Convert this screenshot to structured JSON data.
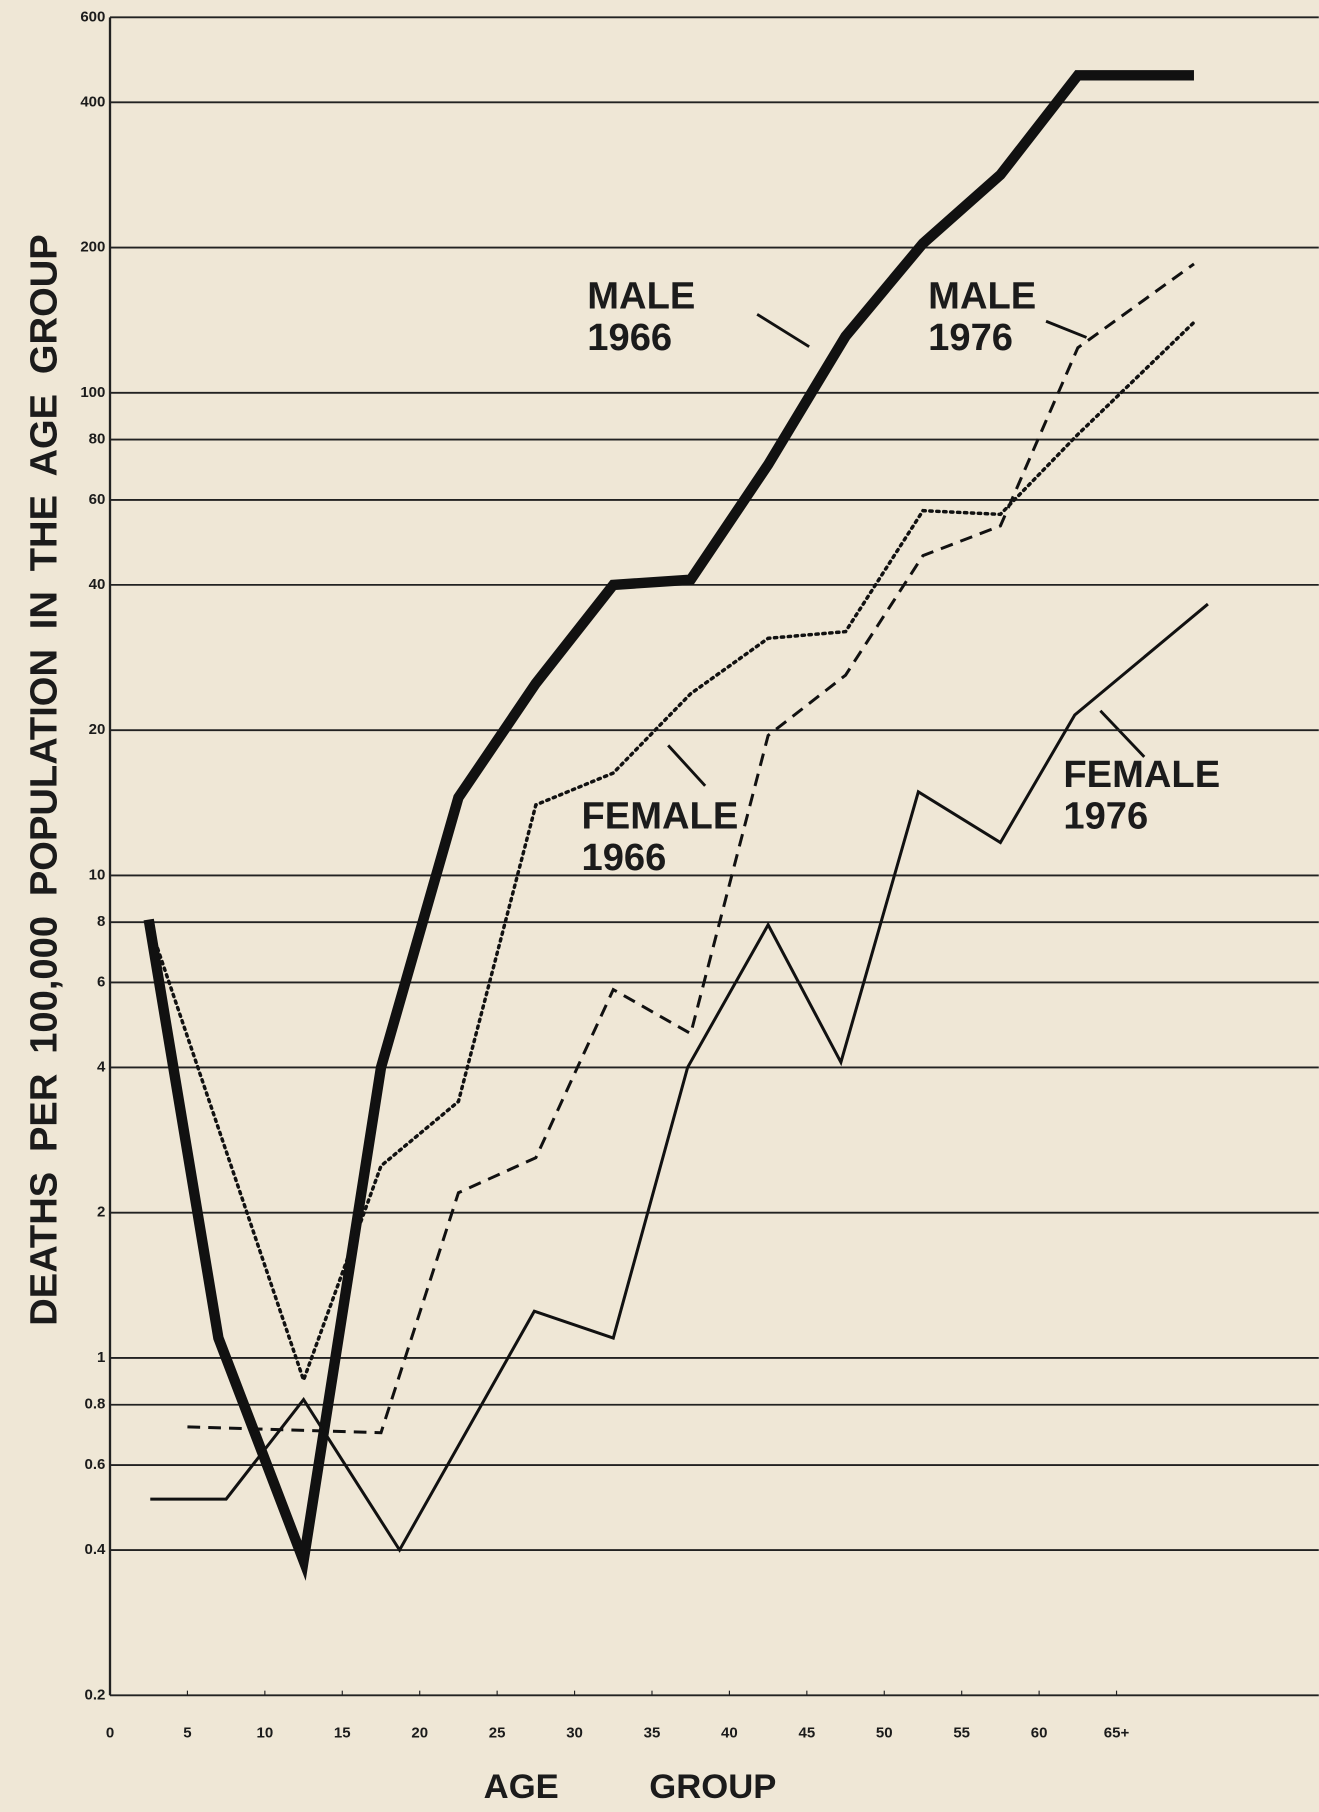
{
  "chart_data": {
    "type": "line",
    "ylabel": "DEATHS PER 100,000 POPULATION IN THE AGE GROUP",
    "xlabel": "AGE GROUP",
    "log_y": true,
    "grid": true,
    "ylim": [
      0.2,
      600
    ],
    "yticks": [
      0.2,
      0.4,
      0.6,
      0.8,
      1,
      2,
      4,
      6,
      8,
      10,
      20,
      40,
      60,
      80,
      100,
      200,
      400,
      600
    ],
    "xlim": [
      0,
      78
    ],
    "xticks": [
      0,
      5,
      10,
      15,
      20,
      25,
      30,
      35,
      40,
      45,
      50,
      55,
      60,
      {
        "value": 65,
        "label": "65+"
      }
    ],
    "series": [
      {
        "name": "MALE 1966",
        "color": "#111111",
        "style": "thick",
        "x": [
          2.5,
          7,
          12.5,
          17.5,
          22.5,
          27.5,
          32.5,
          37.5,
          42.5,
          47.5,
          52.5,
          57.5,
          62.5,
          70
        ],
        "values": [
          8.1,
          1.1,
          0.38,
          4,
          14.5,
          25,
          40,
          41,
          71,
          131,
          204,
          283,
          455,
          455
        ]
      },
      {
        "name": "MALE 1976",
        "color": "#111111",
        "style": "dashed",
        "x": [
          5,
          17.5,
          22.5,
          27.5,
          32.5,
          37.5,
          42.5,
          47.5,
          52.5,
          57.5,
          62.5,
          70
        ],
        "values": [
          0.72,
          0.7,
          2.2,
          2.6,
          5.8,
          4.7,
          19.5,
          26,
          46,
          53,
          124,
          185
        ]
      },
      {
        "name": "FEMALE 1966",
        "color": "#111111",
        "style": "dotted",
        "x": [
          2.5,
          12.5,
          17.5,
          22.5,
          27.5,
          32.5,
          37.5,
          42.5,
          47.5,
          52.5,
          57.5,
          62.5,
          70
        ],
        "values": [
          8,
          0.9,
          2.5,
          3.4,
          14,
          16.3,
          23.8,
          31,
          32,
          57,
          56,
          82,
          140
        ]
      },
      {
        "name": "FEMALE 1976",
        "color": "#111111",
        "style": "solid",
        "x": [
          2.6,
          7.5,
          12.5,
          18.7,
          27.4,
          32.5,
          37.3,
          42.5,
          47.2,
          52.2,
          57.5,
          62.3,
          70.9
        ],
        "values": [
          0.51,
          0.51,
          0.82,
          0.4,
          1.25,
          1.1,
          4,
          7.9,
          4.1,
          14.9,
          11.7,
          21.5,
          36.5
        ]
      }
    ]
  }
}
